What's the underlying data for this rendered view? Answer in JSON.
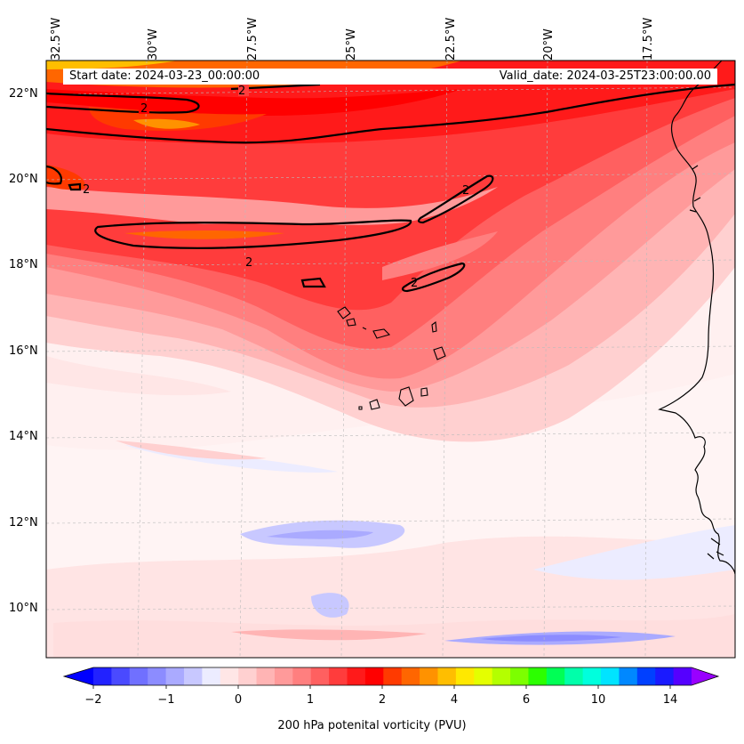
{
  "map": {
    "start_date": "Start date: 2024-03-23_00:00:00",
    "valid_date": "Valid_date: 2024-03-25T23:00:00.00",
    "lon_labels": [
      "32.5°W",
      "30°W",
      "27.5°W",
      "25°W",
      "22.5°W",
      "20°W",
      "17.5°W"
    ],
    "lat_labels": [
      "22°N",
      "20°N",
      "18°N",
      "16°N",
      "14°N",
      "12°N",
      "10°N"
    ],
    "contour_label": "2",
    "colorbar": {
      "title": "200 hPa potenital vorticity (PVU)",
      "tick_labels": [
        "−2",
        "−1",
        "0",
        "1",
        "2",
        "4",
        "6",
        "10",
        "14"
      ],
      "colors": [
        "#0000ff",
        "#2222ff",
        "#4a4aff",
        "#7070ff",
        "#8c8cff",
        "#aaaaff",
        "#c8c8ff",
        "#ececff",
        "#ffe6e6",
        "#ffd0d0",
        "#ffb4b4",
        "#ff9a9a",
        "#ff7f7f",
        "#ff6060",
        "#ff3c3c",
        "#ff1a1a",
        "#ff0000",
        "#ff3a00",
        "#ff6600",
        "#ff9200",
        "#ffbe00",
        "#ffe800",
        "#e4ff00",
        "#b4ff00",
        "#7cff00",
        "#2cff00",
        "#00ff55",
        "#00ffaa",
        "#00ffdd",
        "#00e4ff",
        "#0088ff",
        "#0040ff",
        "#1a1aff",
        "#5500ff",
        "#9900ff"
      ]
    }
  }
}
